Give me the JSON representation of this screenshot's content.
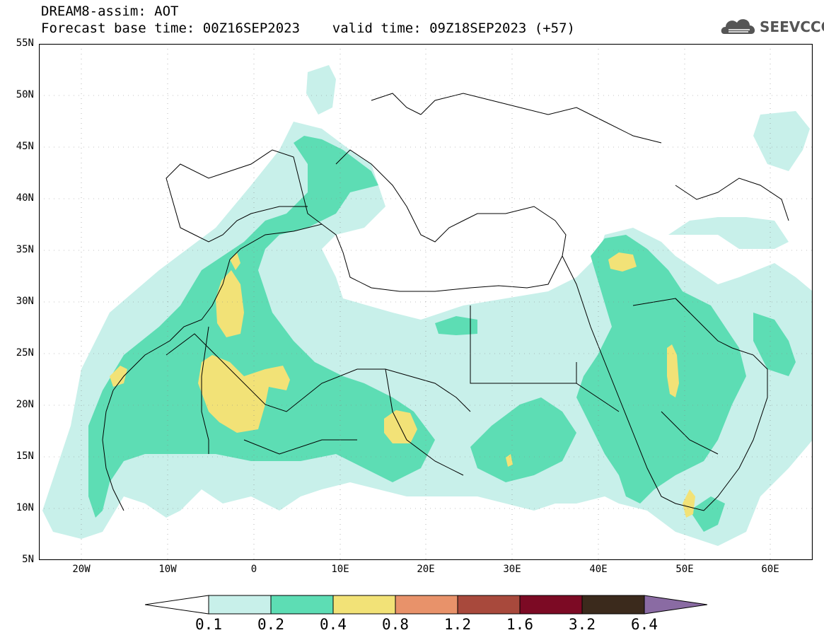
{
  "header": {
    "title_line1": "DREAM8-assim: AOT",
    "title_line2": "Forecast base time: 00Z16SEP2023    valid time: 09Z18SEP2023 (+57)"
  },
  "logo": {
    "text": "SEEVCCC",
    "icon": "cloud-icon"
  },
  "map": {
    "lat_labels": [
      "55N",
      "50N",
      "45N",
      "40N",
      "35N",
      "30N",
      "25N",
      "20N",
      "15N",
      "10N",
      "5N"
    ],
    "lon_labels": [
      "20W",
      "10W",
      "0",
      "10E",
      "20E",
      "30E",
      "40E",
      "50E",
      "60E"
    ],
    "colors": {
      "c1": "#c8f0ea",
      "c2": "#5dddb4",
      "c3": "#f2e277",
      "c4": "#e8926a",
      "c5": "#a8493c",
      "c6": "#7c0a24",
      "c7": "#3b2a1c",
      "c8": "#8a6ba3"
    }
  },
  "colorbar": {
    "labels": [
      "0.1",
      "0.2",
      "0.4",
      "0.8",
      "1.2",
      "1.6",
      "3.2",
      "6.4"
    ]
  }
}
